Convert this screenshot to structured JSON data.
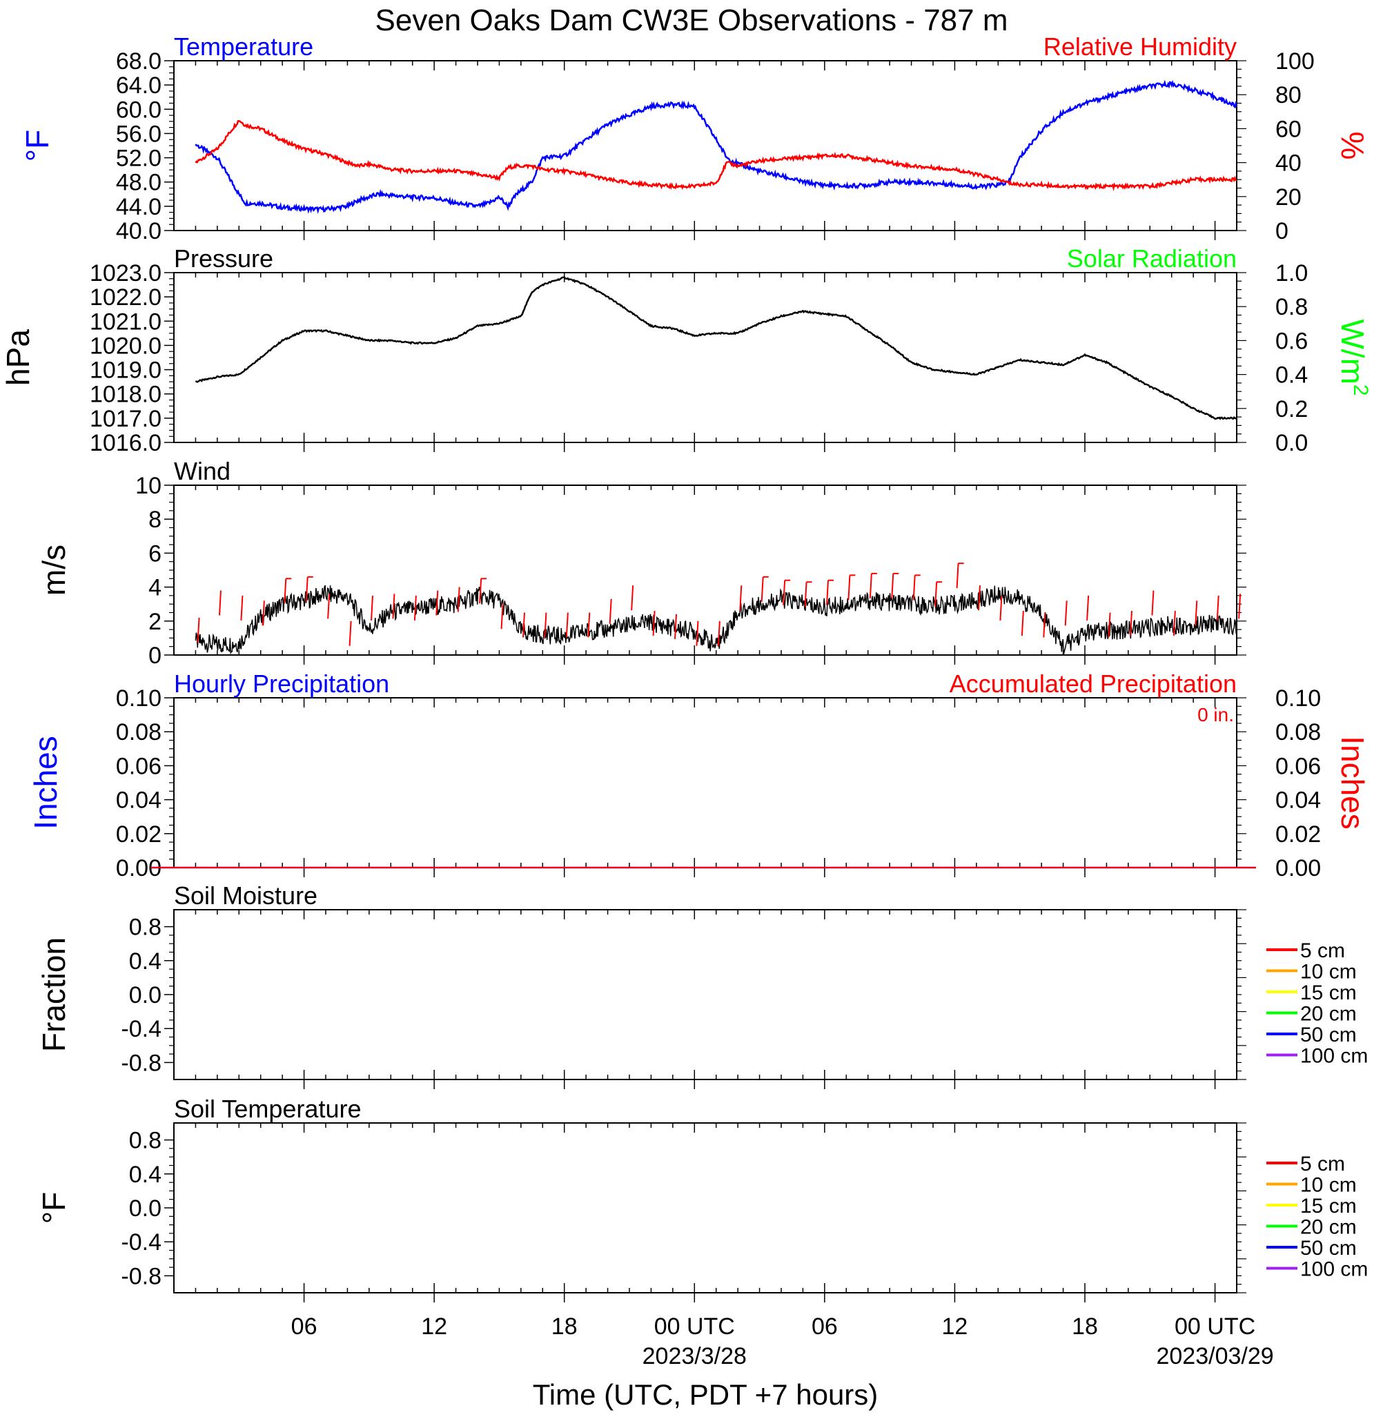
{
  "title": "Seven Oaks Dam CW3E Observations - 787 m",
  "xlabel": "Time (UTC, PDT +7 hours)",
  "colors": {
    "temperature": "#0000ff",
    "humidity": "#ff0000",
    "pressure": "#000000",
    "solar": "#00ff00",
    "wind": "#000000",
    "barb": "#ff0000",
    "precip": "#0000ff",
    "accum": "#ff0000"
  },
  "chart_data": [
    {
      "type": "line",
      "panel": "temperature",
      "title_left": "Temperature",
      "title_right": "Relative Humidity",
      "ylabel_left": "°F",
      "ylabel_right": "%",
      "ylim": [
        40,
        68
      ],
      "ylim_right": [
        0,
        100
      ],
      "yticks": [
        "40.0",
        "44.0",
        "48.0",
        "52.0",
        "56.0",
        "60.0",
        "64.0",
        "68.0"
      ],
      "yticks_right": [
        "0",
        "20",
        "40",
        "60",
        "80",
        "100"
      ],
      "x_hours": [
        1,
        2,
        3,
        3.3,
        4,
        5,
        6,
        7,
        8,
        8.5,
        9,
        9.4,
        10,
        11,
        12,
        13,
        14,
        14.5,
        15,
        15.4,
        15.8,
        16.5,
        17,
        18,
        19,
        20,
        21,
        22,
        23,
        24,
        25,
        25.5,
        26,
        27,
        28,
        29,
        30,
        31,
        32,
        33,
        34,
        35,
        36,
        37,
        38,
        38.5,
        39,
        40,
        41,
        42,
        43,
        44,
        45,
        46,
        47,
        48,
        49
      ],
      "series": [
        {
          "name": "Temperature",
          "values": [
            54.2,
            52,
            46,
            44.5,
            44.5,
            43.8,
            43.6,
            43.5,
            44,
            45,
            45.5,
            46,
            45.8,
            45.5,
            45.4,
            44.5,
            44,
            44.5,
            45.5,
            44,
            46,
            48,
            52,
            52.3,
            55,
            57.5,
            59,
            60.5,
            60.8,
            60.5,
            55,
            52,
            51,
            49.8,
            49,
            48,
            47.5,
            47.3,
            47.5,
            48,
            48,
            47.8,
            47.6,
            47.2,
            47.5,
            48,
            52,
            56.5,
            59.5,
            61,
            62,
            63,
            63.8,
            64.2,
            63.2,
            62,
            60.5
          ]
        },
        {
          "name": "Relative Humidity",
          "values": [
            40,
            48,
            65,
            62,
            60,
            53,
            48,
            45,
            40,
            38,
            39,
            38,
            36,
            35,
            35,
            35,
            33,
            32,
            31,
            37,
            38,
            38,
            36,
            35,
            33,
            30,
            28,
            27,
            26,
            26,
            28,
            40,
            38,
            41,
            42,
            43,
            44,
            44,
            42,
            40,
            38,
            37,
            36,
            33,
            30,
            28,
            27,
            27,
            26,
            26,
            26,
            26,
            26,
            28,
            30,
            30,
            30
          ]
        }
      ]
    },
    {
      "type": "line",
      "panel": "pressure",
      "title_left": "Pressure",
      "title_right": "Solar Radiation",
      "ylabel_left": "hPa",
      "ylabel_right": "W/m",
      "ylabel_right_sup": "2",
      "ylim": [
        1016,
        1023
      ],
      "ylim_right": [
        0,
        1
      ],
      "yticks": [
        "1016.0",
        "1017.0",
        "1018.0",
        "1019.0",
        "1020.0",
        "1021.0",
        "1022.0",
        "1023.0"
      ],
      "yticks_right": [
        "0.0",
        "0.2",
        "0.4",
        "0.6",
        "0.8",
        "1.0"
      ],
      "x_hours": [
        1,
        2,
        3,
        4,
        5,
        6,
        7,
        8,
        9,
        10,
        11,
        12,
        13,
        14,
        15,
        16,
        16.5,
        17,
        18,
        19,
        20,
        21,
        22,
        23,
        24,
        25,
        26,
        27,
        28,
        29,
        30,
        31,
        32,
        33,
        34,
        35,
        36,
        37,
        38,
        39,
        40,
        41,
        42,
        43,
        44,
        45,
        46,
        47,
        48,
        49
      ],
      "series": [
        {
          "name": "Pressure",
          "values": [
            1018.5,
            1018.7,
            1018.8,
            1019.5,
            1020.2,
            1020.6,
            1020.6,
            1020.4,
            1020.2,
            1020.2,
            1020.1,
            1020.1,
            1020.3,
            1020.8,
            1020.9,
            1021.2,
            1022.2,
            1022.5,
            1022.8,
            1022.5,
            1022.0,
            1021.4,
            1020.8,
            1020.7,
            1020.4,
            1020.5,
            1020.5,
            1020.9,
            1021.2,
            1021.4,
            1021.3,
            1021.2,
            1020.6,
            1020.0,
            1019.3,
            1019.0,
            1018.9,
            1018.8,
            1019.1,
            1019.4,
            1019.3,
            1019.2,
            1019.6,
            1019.3,
            1018.8,
            1018.3,
            1017.9,
            1017.4,
            1017.0,
            1017.0
          ]
        }
      ]
    },
    {
      "type": "line",
      "panel": "wind",
      "title_left": "Wind",
      "ylabel_left": "m/s",
      "ylim": [
        0,
        10
      ],
      "yticks": [
        "0",
        "2",
        "4",
        "6",
        "8",
        "10"
      ],
      "x_hours": [
        1,
        2,
        3,
        4,
        5,
        6,
        7,
        8,
        9,
        10,
        11,
        12,
        13,
        14,
        15,
        16,
        17,
        18,
        19,
        20,
        21,
        22,
        23,
        24,
        25,
        26,
        27,
        28,
        29,
        30,
        31,
        32,
        33,
        34,
        35,
        36,
        37,
        38,
        39,
        40,
        41,
        42,
        43,
        44,
        45,
        46,
        47,
        48,
        49
      ],
      "series": [
        {
          "name": "Wind",
          "values": [
            0.8,
            0.6,
            0.7,
            2.2,
            3.0,
            3.2,
            3.6,
            3.4,
            1.5,
            2.5,
            2.7,
            2.9,
            3.0,
            3.5,
            3.2,
            1.4,
            1.2,
            1.1,
            1.4,
            1.5,
            1.8,
            1.9,
            1.6,
            1.4,
            0.5,
            2.5,
            3.0,
            3.3,
            3.0,
            2.8,
            3.0,
            3.2,
            3.1,
            3.0,
            2.9,
            3.0,
            3.2,
            3.6,
            3.3,
            2.5,
            0.5,
            1.3,
            1.4,
            1.5,
            1.6,
            1.8,
            1.7,
            1.9,
            1.6
          ]
        }
      ],
      "barb_speeds": [
        2.2,
        3.8,
        3.5,
        3.2,
        4.5,
        4.6,
        3.6,
        2.0,
        3.5,
        3.6,
        3.5,
        3.8,
        4.0,
        4.5,
        3.0,
        2.5,
        2.5,
        2.5,
        2.5,
        3.3,
        4.1,
        2.6,
        2.4,
        2.0,
        2.0,
        4.1,
        4.6,
        4.4,
        4.3,
        4.4,
        4.7,
        4.8,
        4.8,
        4.7,
        4.3,
        5.4,
        4.1,
        3.5,
        2.6,
        2.5,
        3.2,
        3.5,
        2.5,
        2.6,
        3.8,
        2.6,
        3.2,
        3.5,
        3.6
      ]
    },
    {
      "type": "line",
      "panel": "precipitation",
      "title_left": "Hourly Precipitation",
      "title_right": "Accumulated Precipitation",
      "ylabel_left": "Inches",
      "ylabel_right": "Inches",
      "annotation": "0 in.",
      "ylim": [
        0,
        0.1
      ],
      "ylim_right": [
        0,
        0.1
      ],
      "yticks": [
        "0.00",
        "0.02",
        "0.04",
        "0.06",
        "0.08",
        "0.10"
      ],
      "yticks_right": [
        "0.00",
        "0.02",
        "0.04",
        "0.06",
        "0.08",
        "0.10"
      ],
      "x_hours": [
        1,
        49
      ],
      "series": [
        {
          "name": "Hourly Precipitation",
          "values": [
            0,
            0
          ]
        },
        {
          "name": "Accumulated Precipitation",
          "values": [
            0,
            0
          ]
        }
      ]
    },
    {
      "type": "line",
      "panel": "soil_moisture",
      "title_left": "Soil Moisture",
      "ylabel_left": "Fraction",
      "ylim": [
        -1,
        1
      ],
      "yticks": [
        "-0.8",
        "-0.4",
        "0.0",
        "0.4",
        "0.8"
      ],
      "ytick_values": [
        -0.8,
        -0.4,
        0,
        0.4,
        0.8
      ],
      "legend": [
        {
          "label": "5 cm",
          "color": "#ff0000"
        },
        {
          "label": "10 cm",
          "color": "#ffa500"
        },
        {
          "label": "15 cm",
          "color": "#ffff00"
        },
        {
          "label": "20 cm",
          "color": "#00ff00"
        },
        {
          "label": "50 cm",
          "color": "#0000ff"
        },
        {
          "label": "100 cm",
          "color": "#a020f0"
        }
      ]
    },
    {
      "type": "line",
      "panel": "soil_temperature",
      "title_left": "Soil Temperature",
      "ylabel_left": "°F",
      "ylim": [
        -1,
        1
      ],
      "yticks": [
        "-0.8",
        "-0.4",
        "0.0",
        "0.4",
        "0.8"
      ],
      "ytick_values": [
        -0.8,
        -0.4,
        0,
        0.4,
        0.8
      ],
      "legend": [
        {
          "label": "5 cm",
          "color": "#ff0000"
        },
        {
          "label": "10 cm",
          "color": "#ffa500"
        },
        {
          "label": "15 cm",
          "color": "#ffff00"
        },
        {
          "label": "20 cm",
          "color": "#00ff00"
        },
        {
          "label": "50 cm",
          "color": "#0000ff"
        },
        {
          "label": "100 cm",
          "color": "#a020f0"
        }
      ]
    }
  ],
  "x_axis": {
    "range_hours": [
      0,
      49
    ],
    "ticks": [
      {
        "hour": 6,
        "label": "06",
        "date": ""
      },
      {
        "hour": 12,
        "label": "12",
        "date": ""
      },
      {
        "hour": 18,
        "label": "18",
        "date": ""
      },
      {
        "hour": 24,
        "label": "00 UTC",
        "date": "2023/3/28"
      },
      {
        "hour": 30,
        "label": "06",
        "date": ""
      },
      {
        "hour": 36,
        "label": "12",
        "date": ""
      },
      {
        "hour": 42,
        "label": "18",
        "date": ""
      },
      {
        "hour": 48,
        "label": "00 UTC",
        "date": "2023/03/29"
      }
    ]
  }
}
